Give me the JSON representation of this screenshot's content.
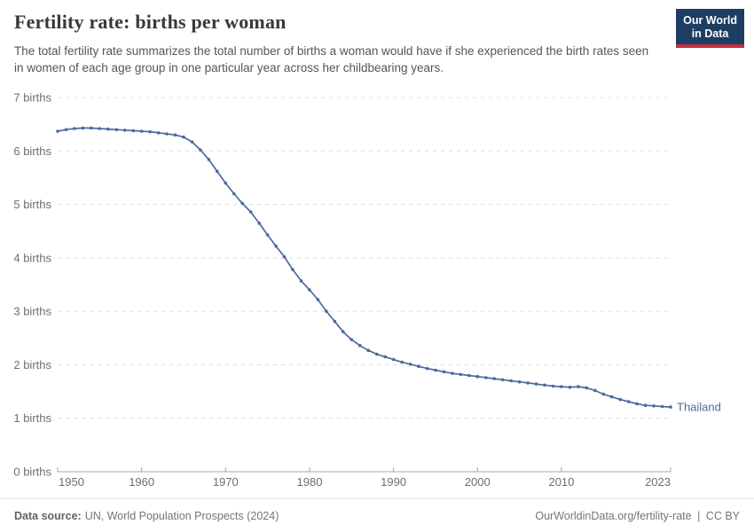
{
  "header": {
    "title": "Fertility rate: births per woman",
    "subtitle": "The total fertility rate summarizes the total number of births a woman would have if she experienced the birth rates seen in women of each age group in one particular year across her childbearing years.",
    "logo": {
      "line1": "Our World",
      "line2": "in Data",
      "bg_color": "#1d3d63",
      "accent_color": "#c5303e"
    }
  },
  "chart_data": {
    "type": "line",
    "title": "Fertility rate: births per woman",
    "unit": "births",
    "x": [
      1950,
      1951,
      1952,
      1953,
      1954,
      1955,
      1956,
      1957,
      1958,
      1959,
      1960,
      1961,
      1962,
      1963,
      1964,
      1965,
      1966,
      1967,
      1968,
      1969,
      1970,
      1971,
      1972,
      1973,
      1974,
      1975,
      1976,
      1977,
      1978,
      1979,
      1980,
      1981,
      1982,
      1983,
      1984,
      1985,
      1986,
      1987,
      1988,
      1989,
      1990,
      1991,
      1992,
      1993,
      1994,
      1995,
      1996,
      1997,
      1998,
      1999,
      2000,
      2001,
      2002,
      2003,
      2004,
      2005,
      2006,
      2007,
      2008,
      2009,
      2010,
      2011,
      2012,
      2013,
      2014,
      2015,
      2016,
      2017,
      2018,
      2019,
      2020,
      2021,
      2022,
      2023
    ],
    "series": [
      {
        "name": "Thailand",
        "color": "#4c6a9c",
        "values": [
          6.37,
          6.4,
          6.42,
          6.43,
          6.43,
          6.42,
          6.41,
          6.4,
          6.39,
          6.38,
          6.37,
          6.36,
          6.34,
          6.32,
          6.3,
          6.26,
          6.17,
          6.02,
          5.84,
          5.62,
          5.4,
          5.2,
          5.02,
          4.86,
          4.65,
          4.43,
          4.22,
          4.02,
          3.78,
          3.57,
          3.4,
          3.22,
          3.0,
          2.81,
          2.62,
          2.47,
          2.36,
          2.27,
          2.2,
          2.15,
          2.1,
          2.05,
          2.01,
          1.97,
          1.93,
          1.9,
          1.87,
          1.84,
          1.82,
          1.8,
          1.78,
          1.76,
          1.74,
          1.72,
          1.7,
          1.68,
          1.66,
          1.64,
          1.62,
          1.6,
          1.59,
          1.58,
          1.59,
          1.57,
          1.52,
          1.45,
          1.4,
          1.35,
          1.31,
          1.27,
          1.24,
          1.23,
          1.22,
          1.21
        ]
      }
    ],
    "xlim": [
      1950,
      2023
    ],
    "ylim": [
      0,
      7
    ],
    "xticks": [
      1950,
      1960,
      1970,
      1980,
      1990,
      2000,
      2010,
      2023
    ],
    "xtick_labels": [
      "1950",
      "1960",
      "1970",
      "1980",
      "1990",
      "2000",
      "2010",
      "2023"
    ],
    "yticks": [
      0,
      1,
      2,
      3,
      4,
      5,
      6,
      7
    ],
    "ytick_labels": [
      "0 births",
      "1 births",
      "2 births",
      "3 births",
      "4 births",
      "5 births",
      "6 births",
      "7 births"
    ],
    "grid": "horizontal-dashed",
    "legend": "entity-label-at-line-end"
  },
  "footer": {
    "source_label": "Data source:",
    "source_text": "UN, World Population Prospects (2024)",
    "url": "OurWorldinData.org/fertility-rate",
    "separator": "|",
    "license": "CC BY"
  }
}
